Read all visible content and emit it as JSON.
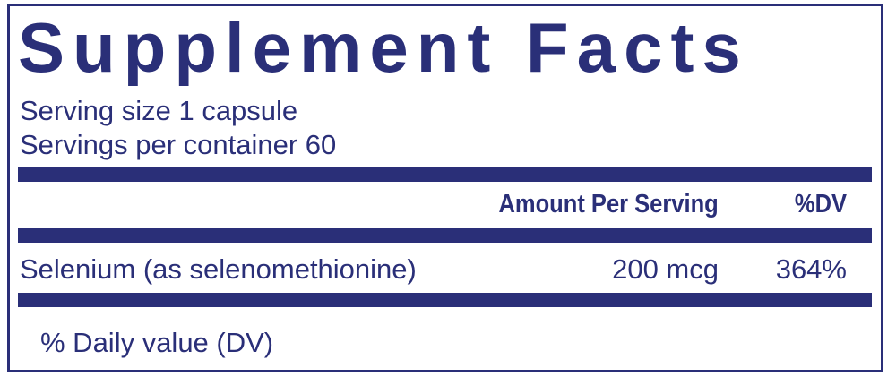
{
  "title": "Supplement Facts",
  "serving_size": "Serving size  1 capsule",
  "servings_per_container": "Servings per container  60",
  "table": {
    "headers": {
      "amount": "Amount Per Serving",
      "dv": "%DV"
    },
    "rows": [
      {
        "name": "Selenium (as selenomethionine)",
        "amount": "200 mcg",
        "dv": "364%"
      }
    ]
  },
  "footnote": "% Daily value (DV)",
  "colors": {
    "ink": "#2a2f78",
    "background": "#ffffff"
  }
}
